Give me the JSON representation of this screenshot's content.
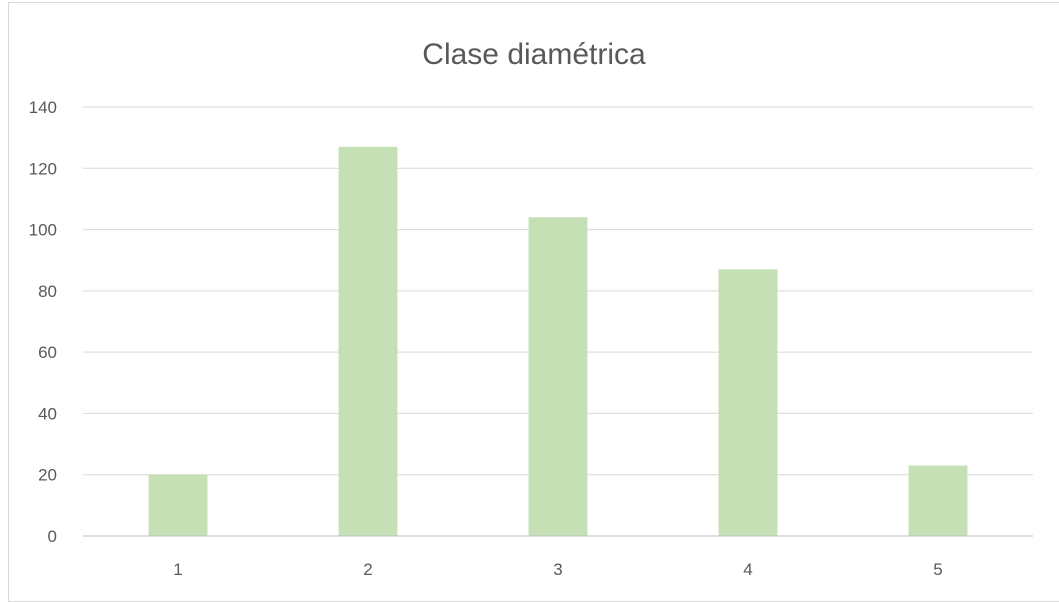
{
  "chart_data": {
    "type": "bar",
    "title": "Clase diamétrica",
    "xlabel": "",
    "ylabel": "",
    "categories": [
      "1",
      "2",
      "3",
      "4",
      "5"
    ],
    "series": [
      {
        "values": [
          20,
          127,
          104,
          87,
          23
        ]
      }
    ],
    "ylim": [
      0,
      140
    ],
    "yticks": [
      "0",
      "20",
      "40",
      "60",
      "80",
      "100",
      "120",
      "140"
    ],
    "grid": true,
    "legend": "none",
    "colors": {
      "bar": "#c5e0b4",
      "grid": "#d9d9d9",
      "axis": "#bfbfbf",
      "text": "#595959"
    }
  }
}
